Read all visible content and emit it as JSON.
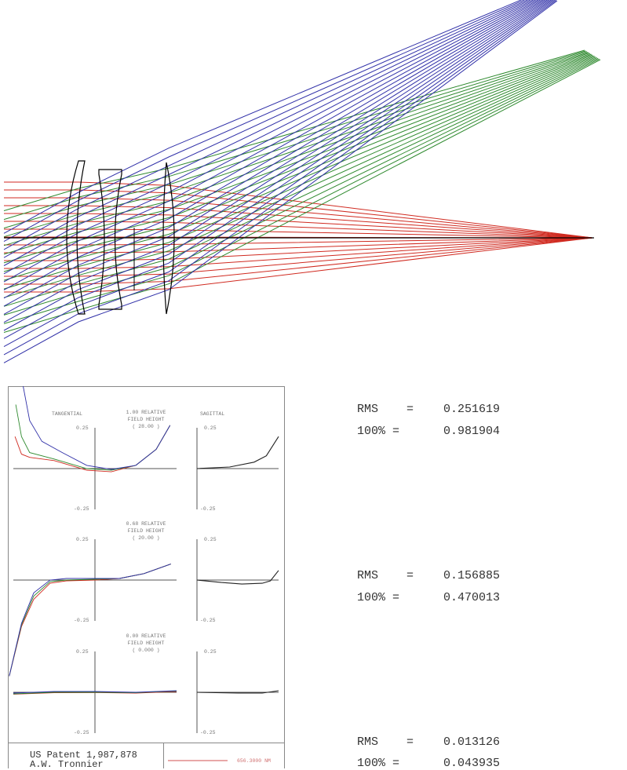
{
  "colors": {
    "short": "#3030a8",
    "mid": "#2f8a2f",
    "long": "#d02a20",
    "overlay": "#222222"
  },
  "layout_diagram": {
    "icon": "lens-ray-trace",
    "fields": [
      "on-axis",
      "intermediate",
      "full"
    ]
  },
  "fan_plot": {
    "column_labels": {
      "tangential": "TANGENTIAL",
      "sagittal": "SAGITTAL"
    },
    "scale_top": "0.25",
    "scale_bottom": "-0.25",
    "rows": [
      {
        "field_line1": "1.00 RELATIVE",
        "field_line2": "FIELD HEIGHT",
        "field_line3": "( 28.00 )",
        "tangential": {
          "short": [
            [
              -0.88,
              0.6
            ],
            [
              -0.8,
              0.3
            ],
            [
              -0.65,
              0.17
            ],
            [
              -0.4,
              0.1
            ],
            [
              -0.1,
              0.02
            ],
            [
              0.2,
              -0.005
            ],
            [
              0.5,
              0.02
            ],
            [
              0.75,
              0.12
            ],
            [
              0.92,
              0.27
            ]
          ],
          "mid": [
            [
              -0.97,
              0.4
            ],
            [
              -0.9,
              0.2
            ],
            [
              -0.8,
              0.1
            ],
            [
              -0.5,
              0.06
            ],
            [
              -0.1,
              0.0
            ],
            [
              0.2,
              -0.01
            ],
            [
              0.5,
              0.02
            ],
            [
              0.75,
              0.12
            ],
            [
              0.92,
              0.27
            ]
          ],
          "long": [
            [
              -0.98,
              0.2
            ],
            [
              -0.9,
              0.09
            ],
            [
              -0.8,
              0.07
            ],
            [
              -0.5,
              0.05
            ],
            [
              -0.1,
              -0.01
            ],
            [
              0.2,
              -0.02
            ],
            [
              0.5,
              0.02
            ],
            [
              0.75,
              0.12
            ],
            [
              0.92,
              0.27
            ]
          ]
        },
        "sagittal": [
          [
            0,
            0
          ],
          [
            0.4,
            0.01
          ],
          [
            0.7,
            0.04
          ],
          [
            0.85,
            0.08
          ],
          [
            1,
            0.2
          ]
        ],
        "rms": "0.251619",
        "hundred": "0.981904"
      },
      {
        "field_line1": "0.68 RELATIVE",
        "field_line2": "FIELD HEIGHT",
        "field_line3": "( 20.00 )",
        "tangential": {
          "short": [
            [
              -1.05,
              -0.6
            ],
            [
              -0.9,
              -0.27
            ],
            [
              -0.75,
              -0.08
            ],
            [
              -0.55,
              0.0
            ],
            [
              -0.35,
              0.01
            ],
            [
              0,
              0.01
            ],
            [
              0.3,
              0.01
            ],
            [
              0.6,
              0.04
            ],
            [
              0.93,
              0.1
            ]
          ],
          "mid": [
            [
              -1.05,
              -0.6
            ],
            [
              -0.9,
              -0.28
            ],
            [
              -0.75,
              -0.1
            ],
            [
              -0.55,
              -0.01
            ],
            [
              -0.35,
              0.0
            ],
            [
              0,
              0.005
            ],
            [
              0.3,
              0.01
            ],
            [
              0.6,
              0.04
            ],
            [
              0.93,
              0.1
            ]
          ],
          "long": [
            [
              -1.05,
              -0.6
            ],
            [
              -0.9,
              -0.29
            ],
            [
              -0.75,
              -0.12
            ],
            [
              -0.55,
              -0.02
            ],
            [
              -0.35,
              -0.005
            ],
            [
              0,
              0.0
            ],
            [
              0.3,
              0.01
            ],
            [
              0.6,
              0.04
            ],
            [
              0.93,
              0.1
            ]
          ]
        },
        "sagittal": [
          [
            0,
            0
          ],
          [
            0.3,
            -0.015
          ],
          [
            0.55,
            -0.025
          ],
          [
            0.8,
            -0.02
          ],
          [
            0.9,
            -0.005
          ],
          [
            1,
            0.06
          ]
        ],
        "rms": "0.156885",
        "hundred": "0.470013"
      },
      {
        "field_line1": "0.00 RELATIVE",
        "field_line2": "FIELD HEIGHT",
        "field_line3": "( 0.000 )",
        "tangential": {
          "short": [
            [
              -1,
              -0.005
            ],
            [
              -0.5,
              0.005
            ],
            [
              0,
              0.005
            ],
            [
              0.5,
              0.0
            ],
            [
              1,
              0.01
            ]
          ],
          "mid": [
            [
              -1,
              -0.01
            ],
            [
              -0.5,
              0.0
            ],
            [
              0,
              0.0
            ],
            [
              0.5,
              -0.003
            ],
            [
              1,
              0.008
            ]
          ],
          "long": [
            [
              -1,
              -0.012
            ],
            [
              -0.5,
              -0.003
            ],
            [
              0,
              -0.002
            ],
            [
              0.5,
              -0.005
            ],
            [
              1,
              0.005
            ]
          ]
        },
        "sagittal": [
          [
            0,
            0
          ],
          [
            0.5,
            -0.005
          ],
          [
            0.8,
            -0.005
          ],
          [
            1,
            0.01
          ]
        ],
        "rms": "0.013126",
        "hundred": "0.043935"
      }
    ],
    "footer": {
      "line1": "US Patent 1,987,878",
      "line2": "A.W. Tronnier",
      "wavelength1": "656.3000 NM"
    }
  },
  "stats_labels": {
    "rms": "RMS    =",
    "hundred": "100% ="
  }
}
